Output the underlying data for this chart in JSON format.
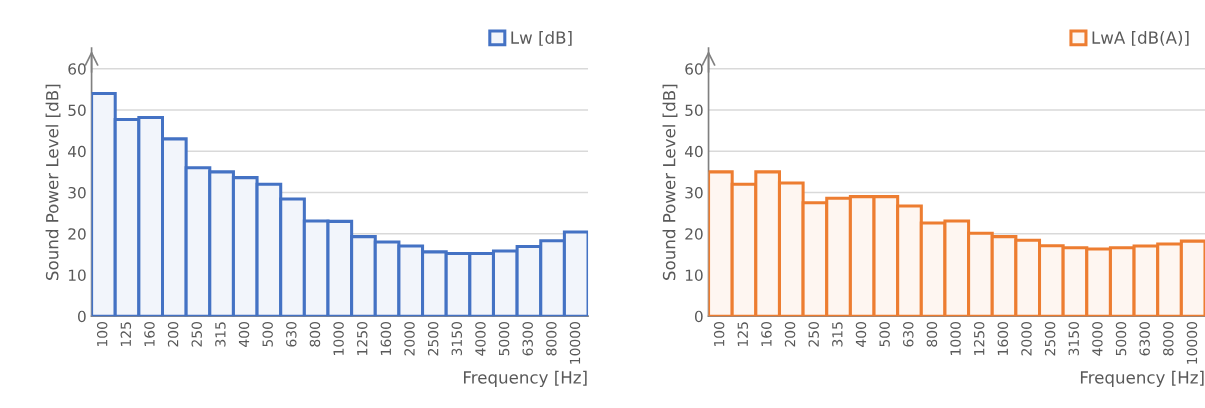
{
  "chart_data": [
    {
      "type": "bar",
      "categories": [
        "100",
        "125",
        "160",
        "200",
        "250",
        "315",
        "400",
        "500",
        "630",
        "800",
        "1000",
        "1250",
        "1600",
        "2000",
        "2500",
        "3150",
        "4000",
        "5000",
        "6300",
        "8000",
        "10000"
      ],
      "series": [
        {
          "name": "Lw [dB]",
          "color": "#4472c4",
          "values": [
            54,
            47.7,
            48.2,
            43,
            36,
            35,
            33.6,
            32,
            28.4,
            23.1,
            23,
            19.3,
            18,
            17,
            15.6,
            15.2,
            15.2,
            15.8,
            16.9,
            18.3,
            20.4
          ]
        }
      ],
      "xlabel": "Frequency [Hz]",
      "ylabel": "Sound Power Level [dB]",
      "ylim": [
        0,
        65
      ],
      "yticks": [
        0,
        10,
        20,
        30,
        40,
        50,
        60
      ],
      "grid": "y",
      "legend": "top right"
    },
    {
      "type": "bar",
      "categories": [
        "100",
        "125",
        "160",
        "200",
        "250",
        "315",
        "400",
        "500",
        "630",
        "800",
        "1000",
        "1250",
        "1600",
        "2000",
        "2500",
        "3150",
        "4000",
        "5000",
        "6300",
        "8000",
        "10000"
      ],
      "series": [
        {
          "name": "LwA [dB(A)]",
          "color": "#ed7d31",
          "values": [
            35,
            32,
            35,
            32.3,
            27.5,
            28.6,
            29,
            29,
            26.7,
            22.6,
            23.1,
            20.1,
            19.3,
            18.4,
            17.1,
            16.6,
            16.3,
            16.6,
            17,
            17.5,
            18.2
          ]
        }
      ],
      "xlabel": "Frequency [Hz]",
      "ylabel": "Sound Power Level [dB]",
      "ylim": [
        0,
        65
      ],
      "yticks": [
        0,
        10,
        20,
        30,
        40,
        50,
        60
      ],
      "grid": "y",
      "legend": "top right"
    }
  ]
}
